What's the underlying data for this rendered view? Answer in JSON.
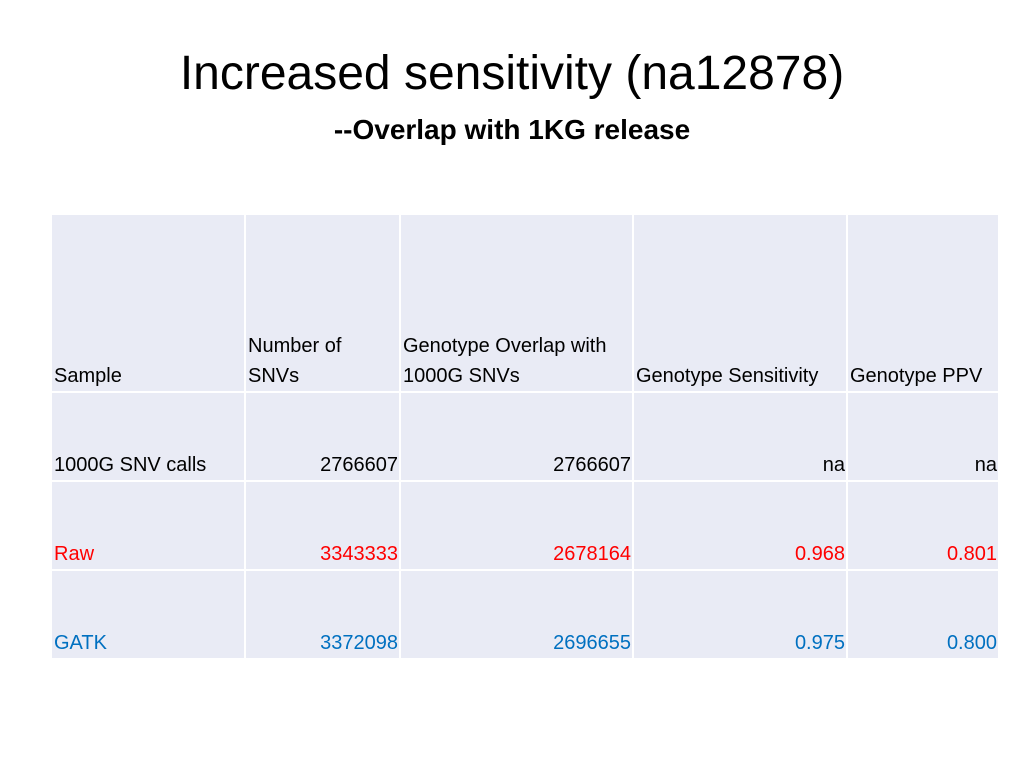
{
  "slide": {
    "title": "Increased sensitivity (na12878)",
    "subtitle": "--Overlap with 1KG release"
  },
  "table": {
    "headers": [
      "Sample",
      "Number of SNVs",
      "Genotype Overlap with 1000G SNVs",
      "Genotype Sensitivity",
      "Genotype PPV"
    ],
    "rows": [
      [
        "1000G SNV calls",
        "2766607",
        "2766607",
        "na",
        "na"
      ],
      [
        "Raw",
        "3343333",
        "2678164",
        "0.968",
        "0.801"
      ],
      [
        "GATK",
        "3372098",
        "2696655",
        "0.975",
        "0.800"
      ]
    ]
  },
  "colors": {
    "table_fill": "#e9ebf5",
    "raw_text": "#ff0000",
    "gatk_text": "#0070c0"
  }
}
